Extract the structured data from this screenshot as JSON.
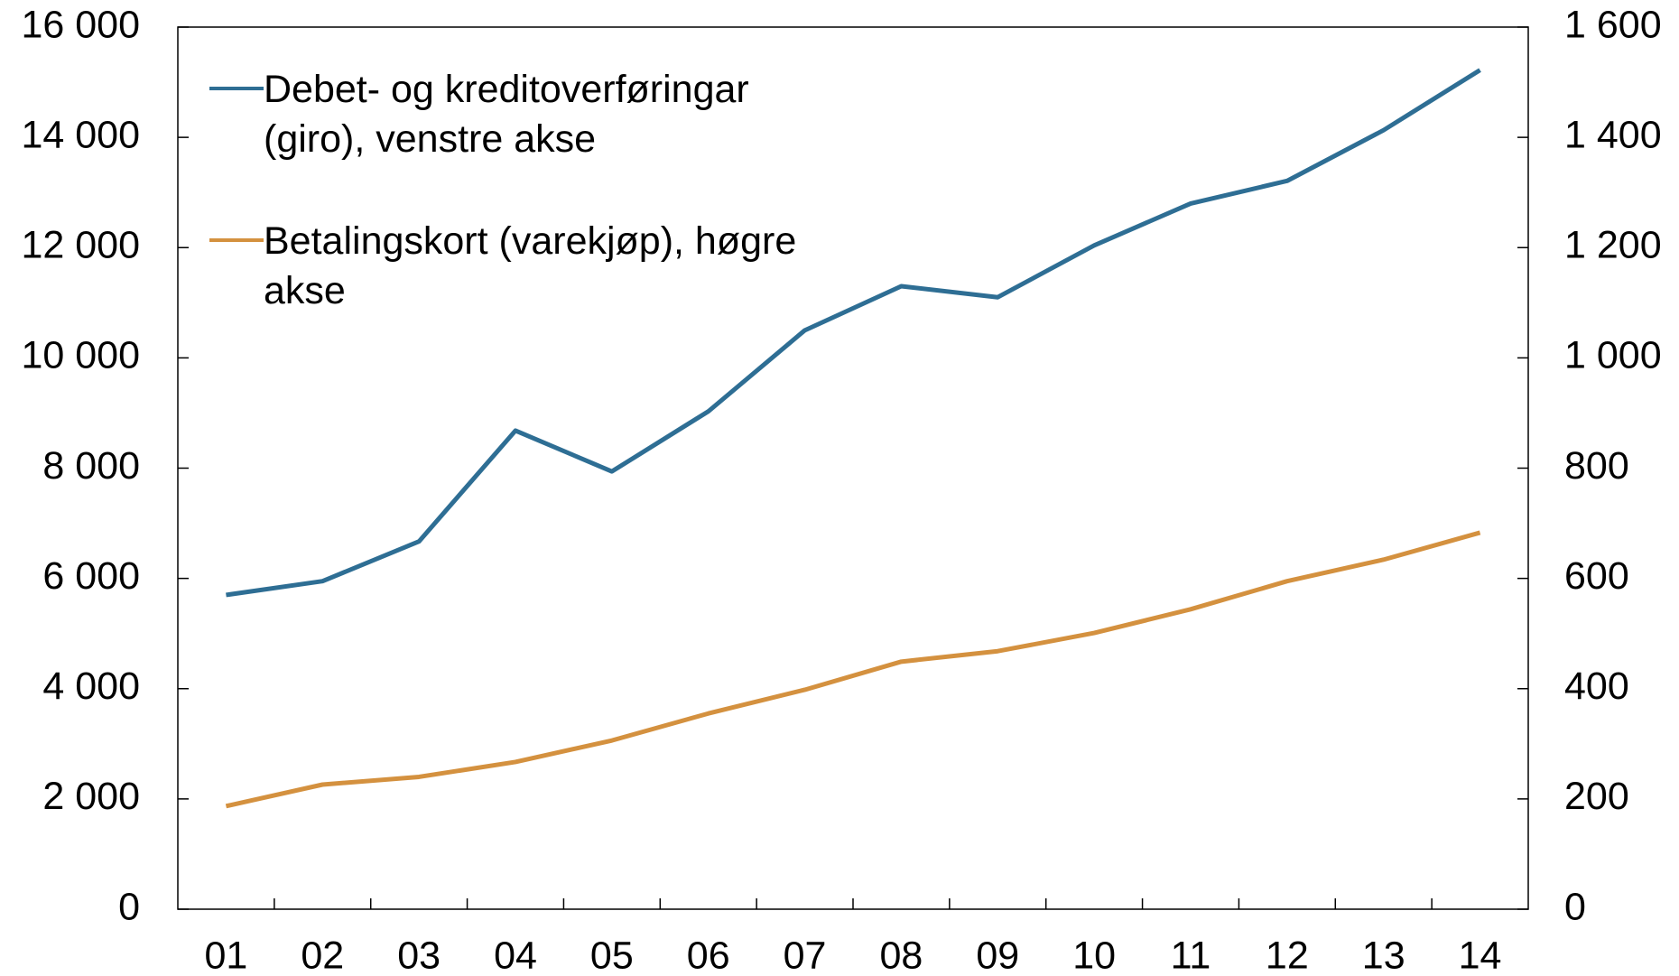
{
  "chart_data": {
    "type": "line",
    "categories": [
      "01",
      "02",
      "03",
      "04",
      "05",
      "06",
      "07",
      "08",
      "09",
      "10",
      "11",
      "12",
      "13",
      "14"
    ],
    "series": [
      {
        "name": "Debet- og kreditoverføringar (giro), venstre akse",
        "color": "#2e6e94",
        "values": [
          5700,
          5950,
          6670,
          8680,
          7940,
          9030,
          10500,
          11300,
          11100,
          12040,
          12800,
          13210,
          14130,
          15220
        ]
      },
      {
        "name": "Betalingskort (varekjøp), høgre akse",
        "color": "#d4913f",
        "axis": "y2",
        "values": [
          187,
          226,
          240,
          267,
          306,
          355,
          398,
          449,
          468,
          501,
          544,
          595,
          634,
          683
        ]
      }
    ],
    "ylim": [
      0,
      16000
    ],
    "yticks": [
      0,
      {
        "value": 2000,
        "label": "2 000"
      },
      {
        "value": 4000,
        "label": "4 000"
      },
      {
        "value": 6000,
        "label": "6 000"
      },
      {
        "value": 8000,
        "label": "8 000"
      },
      {
        "value": 10000,
        "label": "10 000"
      },
      {
        "value": 12000,
        "label": "12 000"
      },
      {
        "value": 14000,
        "label": "14 000"
      },
      {
        "value": 16000,
        "label": "16 000"
      }
    ],
    "y2lim": [
      0,
      1600
    ],
    "y2ticks": [
      0,
      200,
      400,
      600,
      800,
      {
        "value": 1000,
        "label": "1 000"
      },
      {
        "value": 1200,
        "label": "1 200"
      },
      {
        "value": 1400,
        "label": "1 400"
      },
      {
        "value": 1600,
        "label": "1 600"
      }
    ]
  }
}
